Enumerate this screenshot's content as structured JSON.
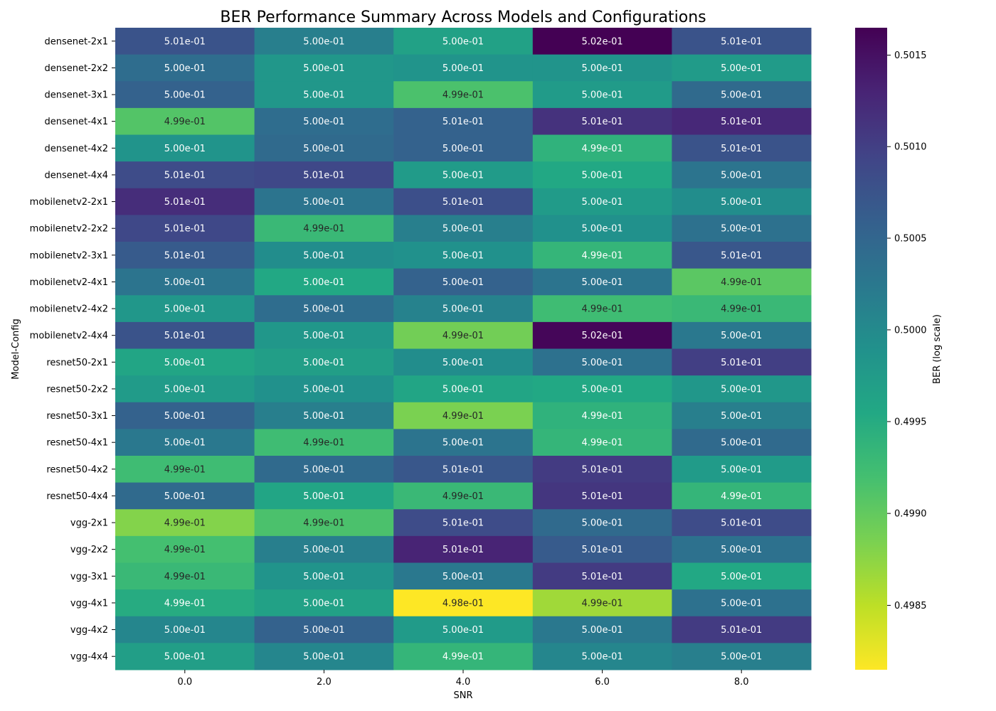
{
  "chart_data": {
    "type": "heatmap",
    "title": "BER Performance Summary Across Models and Configurations",
    "xlabel": "SNR",
    "ylabel": "Model-Config",
    "x_categories": [
      "0.0",
      "2.0",
      "4.0",
      "6.0",
      "8.0"
    ],
    "y_categories": [
      "densenet-2x1",
      "densenet-2x2",
      "densenet-3x1",
      "densenet-4x1",
      "densenet-4x2",
      "densenet-4x4",
      "mobilenetv2-2x1",
      "mobilenetv2-2x2",
      "mobilenetv2-3x1",
      "mobilenetv2-4x1",
      "mobilenetv2-4x2",
      "mobilenetv2-4x4",
      "resnet50-2x1",
      "resnet50-2x2",
      "resnet50-3x1",
      "resnet50-4x1",
      "resnet50-4x2",
      "resnet50-4x4",
      "vgg-2x1",
      "vgg-2x2",
      "vgg-3x1",
      "vgg-4x1",
      "vgg-4x2",
      "vgg-4x4"
    ],
    "values": [
      [
        0.50075,
        0.50015,
        0.49965,
        0.50165,
        0.50075
      ],
      [
        0.5004,
        0.4998,
        0.49985,
        0.49985,
        0.49975
      ],
      [
        0.50055,
        0.4998,
        0.49915,
        0.49975,
        0.50045
      ],
      [
        0.4991,
        0.5004,
        0.50055,
        0.50115,
        0.50125
      ],
      [
        0.49985,
        0.50045,
        0.50055,
        0.4994,
        0.50075
      ],
      [
        0.50085,
        0.5009,
        0.49975,
        0.49955,
        0.5003
      ],
      [
        0.5012,
        0.5003,
        0.5008,
        0.49975,
        0.49995
      ],
      [
        0.5009,
        0.4993,
        0.50015,
        0.4999,
        0.50035
      ],
      [
        0.50065,
        0.49995,
        0.4999,
        0.49935,
        0.5007
      ],
      [
        0.5003,
        0.49955,
        0.50055,
        0.5003,
        0.49905
      ],
      [
        0.4998,
        0.5004,
        0.5001,
        0.49925,
        0.4993
      ],
      [
        0.50075,
        0.4998,
        0.4989,
        0.5016,
        0.50025
      ],
      [
        0.4996,
        0.4997,
        0.49995,
        0.50035,
        0.501
      ],
      [
        0.49975,
        0.4999,
        0.4996,
        0.49955,
        0.4998
      ],
      [
        0.50055,
        0.50015,
        0.49885,
        0.4994,
        0.50015
      ],
      [
        0.50025,
        0.49925,
        0.5003,
        0.49935,
        0.50045
      ],
      [
        0.49925,
        0.50045,
        0.5007,
        0.50105,
        0.49975
      ],
      [
        0.50045,
        0.4996,
        0.4993,
        0.5011,
        0.49935
      ],
      [
        0.4988,
        0.49915,
        0.50085,
        0.50045,
        0.50085
      ],
      [
        0.4992,
        0.50015,
        0.5013,
        0.50065,
        0.50035
      ],
      [
        0.4993,
        0.49985,
        0.50025,
        0.50105,
        0.49955
      ],
      [
        0.4995,
        0.49965,
        0.49815,
        0.49865,
        0.50035
      ],
      [
        0.50005,
        0.50055,
        0.49975,
        0.50025,
        0.50105
      ],
      [
        0.4997,
        0.50005,
        0.49935,
        0.50005,
        0.50015
      ]
    ],
    "cell_labels": [
      [
        "5.01e-01",
        "5.00e-01",
        "5.00e-01",
        "5.02e-01",
        "5.01e-01"
      ],
      [
        "5.00e-01",
        "5.00e-01",
        "5.00e-01",
        "5.00e-01",
        "5.00e-01"
      ],
      [
        "5.00e-01",
        "5.00e-01",
        "4.99e-01",
        "5.00e-01",
        "5.00e-01"
      ],
      [
        "4.99e-01",
        "5.00e-01",
        "5.01e-01",
        "5.01e-01",
        "5.01e-01"
      ],
      [
        "5.00e-01",
        "5.00e-01",
        "5.00e-01",
        "4.99e-01",
        "5.01e-01"
      ],
      [
        "5.01e-01",
        "5.01e-01",
        "5.00e-01",
        "5.00e-01",
        "5.00e-01"
      ],
      [
        "5.01e-01",
        "5.00e-01",
        "5.01e-01",
        "5.00e-01",
        "5.00e-01"
      ],
      [
        "5.01e-01",
        "4.99e-01",
        "5.00e-01",
        "5.00e-01",
        "5.00e-01"
      ],
      [
        "5.01e-01",
        "5.00e-01",
        "5.00e-01",
        "4.99e-01",
        "5.01e-01"
      ],
      [
        "5.00e-01",
        "5.00e-01",
        "5.00e-01",
        "5.00e-01",
        "4.99e-01"
      ],
      [
        "5.00e-01",
        "5.00e-01",
        "5.00e-01",
        "4.99e-01",
        "4.99e-01"
      ],
      [
        "5.01e-01",
        "5.00e-01",
        "4.99e-01",
        "5.02e-01",
        "5.00e-01"
      ],
      [
        "5.00e-01",
        "5.00e-01",
        "5.00e-01",
        "5.00e-01",
        "5.01e-01"
      ],
      [
        "5.00e-01",
        "5.00e-01",
        "5.00e-01",
        "5.00e-01",
        "5.00e-01"
      ],
      [
        "5.00e-01",
        "5.00e-01",
        "4.99e-01",
        "4.99e-01",
        "5.00e-01"
      ],
      [
        "5.00e-01",
        "4.99e-01",
        "5.00e-01",
        "4.99e-01",
        "5.00e-01"
      ],
      [
        "4.99e-01",
        "5.00e-01",
        "5.01e-01",
        "5.01e-01",
        "5.00e-01"
      ],
      [
        "5.00e-01",
        "5.00e-01",
        "4.99e-01",
        "5.01e-01",
        "4.99e-01"
      ],
      [
        "4.99e-01",
        "4.99e-01",
        "5.01e-01",
        "5.00e-01",
        "5.01e-01"
      ],
      [
        "4.99e-01",
        "5.00e-01",
        "5.01e-01",
        "5.01e-01",
        "5.00e-01"
      ],
      [
        "4.99e-01",
        "5.00e-01",
        "5.00e-01",
        "5.01e-01",
        "5.00e-01"
      ],
      [
        "4.99e-01",
        "5.00e-01",
        "4.98e-01",
        "4.99e-01",
        "5.00e-01"
      ],
      [
        "5.00e-01",
        "5.00e-01",
        "5.00e-01",
        "5.00e-01",
        "5.01e-01"
      ],
      [
        "5.00e-01",
        "5.00e-01",
        "4.99e-01",
        "5.00e-01",
        "5.00e-01"
      ]
    ],
    "colorbar": {
      "label": "BER (log scale)",
      "scale": "log",
      "colormap": "viridis",
      "range": [
        0.49815,
        0.50165
      ],
      "ticks": [
        "0.4985",
        "0.4990",
        "0.4995",
        "0.5000",
        "0.5005",
        "0.5010",
        "0.5015"
      ]
    },
    "grid": false
  }
}
